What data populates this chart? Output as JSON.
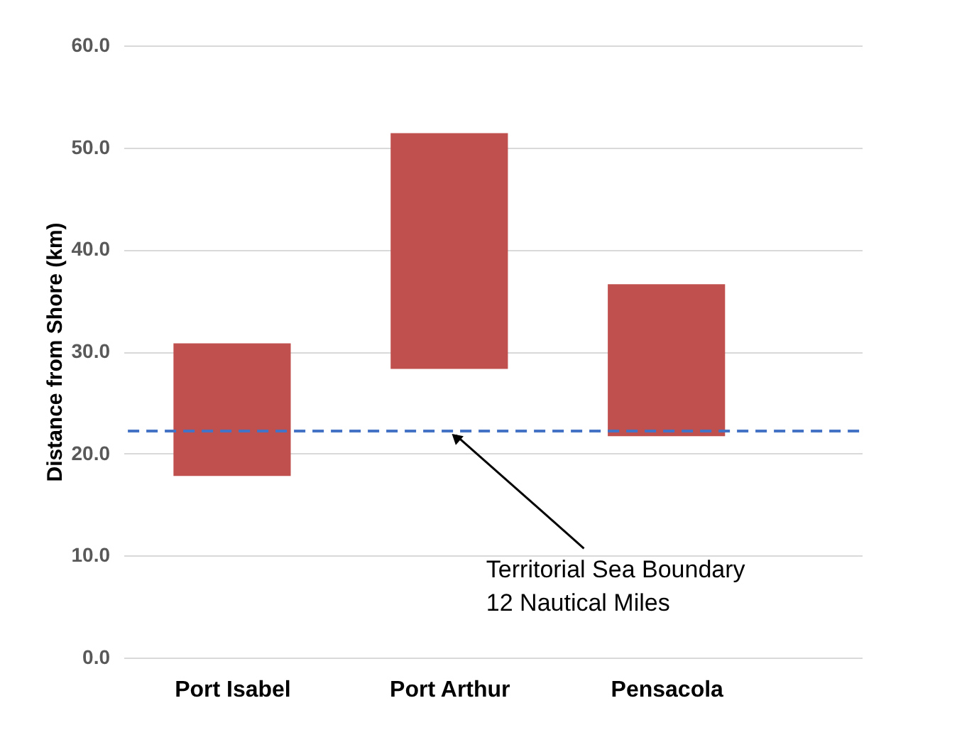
{
  "chart_data": {
    "type": "bar",
    "ylabel": "Distance from Shore (km)",
    "categories": [
      "Port Isabel",
      "Port Arthur",
      "Pensacola"
    ],
    "base": [
      17.8,
      28.3,
      21.7
    ],
    "values": [
      13.0,
      23.1,
      14.9
    ],
    "color": "#c0504d",
    "ylim": [
      0,
      60
    ],
    "yticks": [
      {
        "value": 0,
        "label": "0.0"
      },
      {
        "value": 10,
        "label": "10.0"
      },
      {
        "value": 20,
        "label": "20.0"
      },
      {
        "value": 30,
        "label": "30.0"
      },
      {
        "value": 40,
        "label": "40.0"
      },
      {
        "value": 50,
        "label": "50.0"
      },
      {
        "value": 60,
        "label": "60.0"
      }
    ],
    "grid": "y",
    "ref_lines": [
      {
        "axis": "y",
        "value": 22.2,
        "label": "Territorial Sea Boundary\n12 Nautical Miles",
        "color": "#4472c4",
        "line_style": "dashed"
      }
    ]
  }
}
